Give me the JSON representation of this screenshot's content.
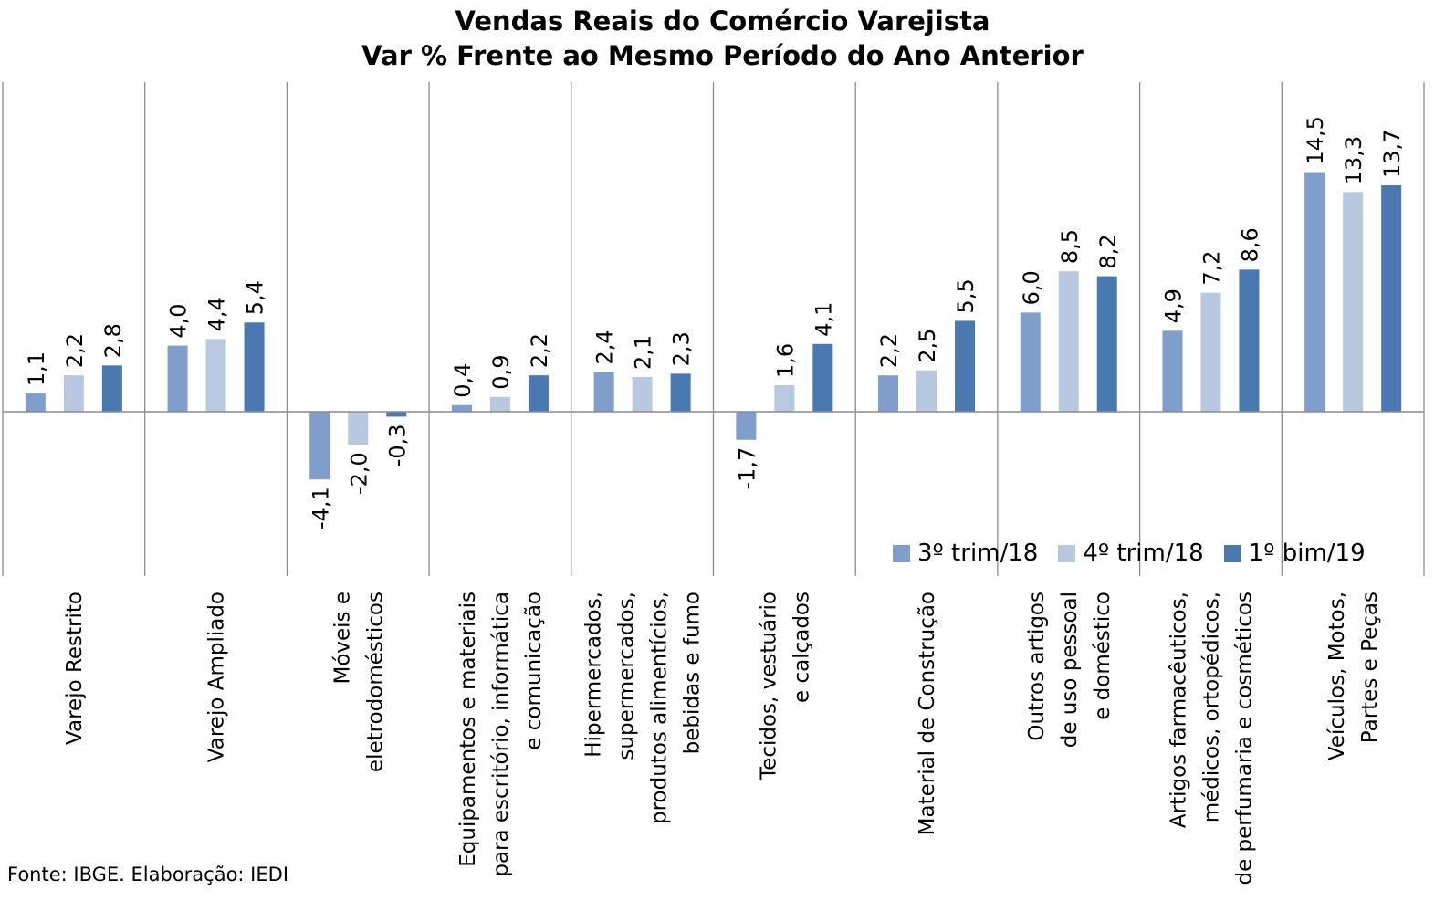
{
  "chart_data": {
    "type": "bar",
    "title": "Vendas Reais do Comércio Varejista",
    "subtitle": "Var % Frente ao Mesmo Período do Ano Anterior",
    "categories": [
      [
        "Varejo Restrito"
      ],
      [
        "Varejo Ampliado"
      ],
      [
        "Móveis e",
        "eletrodomésticos"
      ],
      [
        "Equipamentos e materiais",
        "para escritório, informática",
        "e comunicação"
      ],
      [
        "Hipermercados,",
        "supermercados,",
        "produtos alimentícios,",
        "bebidas e fumo"
      ],
      [
        "Tecidos, vestuário",
        "e calçados"
      ],
      [
        "Material de Construção"
      ],
      [
        "Outros artigos",
        "de uso pessoal",
        "e doméstico"
      ],
      [
        "Artigos farmacêuticos,",
        "médicos, ortopédicos,",
        "de perfumaria e cosméticos"
      ],
      [
        "Veículos, Motos,",
        "Partes e Peças"
      ]
    ],
    "series": [
      {
        "name": "3º trim/18",
        "color": "#7f9ecb",
        "values": [
          1.1,
          4.0,
          -4.1,
          0.4,
          2.4,
          -1.7,
          2.2,
          6.0,
          4.9,
          14.5
        ],
        "labels": [
          "1,1",
          "4,0",
          "-4,1",
          "0,4",
          "2,4",
          "-1,7",
          "2,2",
          "6,0",
          "4,9",
          "14,5"
        ]
      },
      {
        "name": "4º trim/18",
        "color": "#b9c8e1",
        "values": [
          2.2,
          4.4,
          -2.0,
          0.9,
          2.1,
          1.6,
          2.5,
          8.5,
          7.2,
          13.3
        ],
        "labels": [
          "2,2",
          "4,4",
          "-2,0",
          "0,9",
          "2,1",
          "1,6",
          "2,5",
          "8,5",
          "7,2",
          "13,3"
        ]
      },
      {
        "name": "1º bim/19",
        "color": "#4a78b0",
        "values": [
          2.8,
          5.4,
          -0.3,
          2.2,
          2.3,
          4.1,
          5.5,
          8.2,
          8.6,
          13.7
        ],
        "labels": [
          "2,8",
          "5,4",
          "-0,3",
          "2,2",
          "2,3",
          "4,1",
          "5,5",
          "8,2",
          "8,6",
          "13,7"
        ]
      }
    ],
    "ylim": [
      -10,
      20
    ],
    "grid": false,
    "legend_position": "bottom-right",
    "source": "Fonte: IBGE. Elaboração: IEDI"
  }
}
